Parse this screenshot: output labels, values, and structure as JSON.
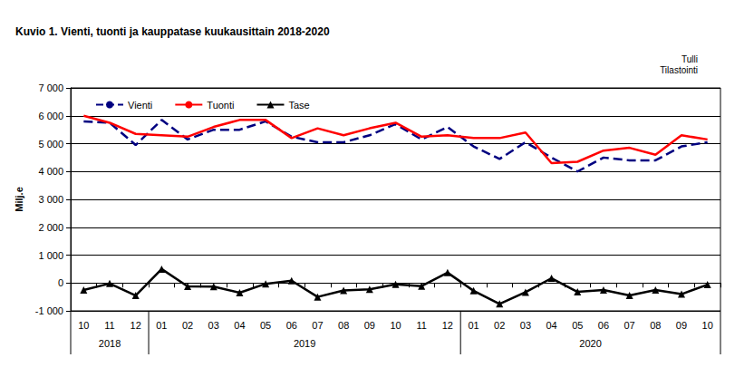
{
  "chart_data": {
    "type": "line",
    "title": "Kuvio 1. Vienti, tuonti ja kauppatase kuukausittain 2018-2020",
    "source": [
      "Tulli",
      "Tilastointi"
    ],
    "y_label": "Milj.e",
    "categories": [
      "10",
      "11",
      "12",
      "01",
      "02",
      "03",
      "04",
      "05",
      "06",
      "07",
      "08",
      "09",
      "10",
      "11",
      "12",
      "01",
      "02",
      "03",
      "04",
      "05",
      "06",
      "07",
      "08",
      "09",
      "10"
    ],
    "category_groups": [
      "2018",
      "2018",
      "2018",
      "2019",
      "2019",
      "2019",
      "2019",
      "2019",
      "2019",
      "2019",
      "2019",
      "2019",
      "2019",
      "2019",
      "2019",
      "2020",
      "2020",
      "2020",
      "2020",
      "2020",
      "2020",
      "2020",
      "2020",
      "2020",
      "2020"
    ],
    "series": [
      {
        "name": "Vienti",
        "color": "#000080",
        "line_style": "dashed",
        "marker": "none",
        "values": [
          5800,
          5750,
          4950,
          5850,
          5150,
          5500,
          5500,
          5800,
          5250,
          5050,
          5050,
          5300,
          5700,
          5150,
          5600,
          4900,
          4450,
          5050,
          4500,
          4000,
          4500,
          4400,
          4400,
          4900,
          5050
        ]
      },
      {
        "name": "Tuonti",
        "color": "#ff0000",
        "line_style": "solid",
        "marker": "none",
        "values": [
          6000,
          5750,
          5350,
          5300,
          5250,
          5600,
          5850,
          5850,
          5200,
          5550,
          5300,
          5550,
          5750,
          5250,
          5300,
          5200,
          5200,
          5400,
          4300,
          4350,
          4750,
          4850,
          4600,
          5300,
          5150
        ]
      },
      {
        "name": "Tase",
        "color": "#000000",
        "line_style": "solid",
        "marker": "triangle",
        "values": [
          -250,
          -20,
          -450,
          500,
          -120,
          -130,
          -350,
          -30,
          80,
          -500,
          -270,
          -230,
          -50,
          -110,
          370,
          -280,
          -750,
          -330,
          170,
          -320,
          -250,
          -450,
          -250,
          -400,
          -60
        ]
      }
    ],
    "ylim": [
      -1000,
      7000
    ],
    "yticks": [
      {
        "value": -1000,
        "label": "-1 000"
      },
      0,
      {
        "value": 1000,
        "label": "1 000"
      },
      {
        "value": 2000,
        "label": "2 000"
      },
      {
        "value": 3000,
        "label": "3 000"
      },
      {
        "value": 4000,
        "label": "4 000"
      },
      {
        "value": 5000,
        "label": "5 000"
      },
      {
        "value": 6000,
        "label": "6 000"
      },
      {
        "value": 7000,
        "label": "7 000"
      }
    ],
    "grid": true,
    "legend": "top-left"
  }
}
